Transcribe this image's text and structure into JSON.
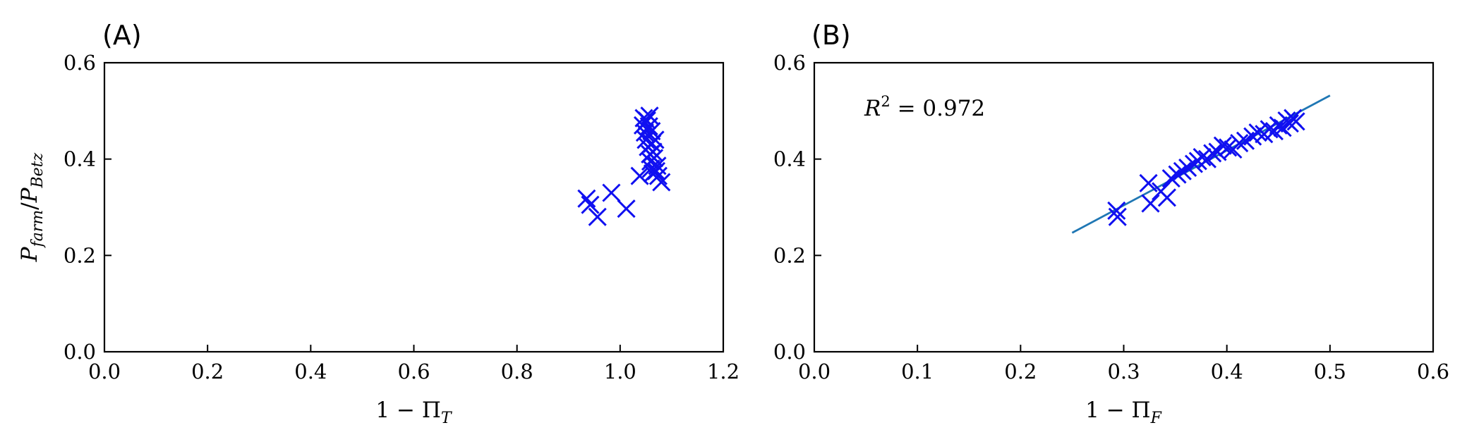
{
  "colors": {
    "marker": "#1010f0",
    "fit_line": "#1f77b4"
  },
  "chart_data": [
    {
      "type": "scatter",
      "panel_label": "(A)",
      "xlabel": "1 − Π_T",
      "ylabel": "P_farm / P_Betz",
      "xlim": [
        0,
        1.2
      ],
      "ylim": [
        0,
        0.6
      ],
      "xticks": [
        "0.0",
        "0.2",
        "0.4",
        "0.6",
        "0.8",
        "1.0",
        "1.2"
      ],
      "yticks": [
        "0.0",
        "0.2",
        "0.4",
        "0.6"
      ],
      "series": [
        {
          "marker": "x",
          "points": [
            [
              0.935,
              0.318
            ],
            [
              0.942,
              0.305
            ],
            [
              0.956,
              0.28
            ],
            [
              0.983,
              0.33
            ],
            [
              1.012,
              0.297
            ],
            [
              1.038,
              0.365
            ],
            [
              1.044,
              0.47
            ],
            [
              1.046,
              0.485
            ],
            [
              1.048,
              0.455
            ],
            [
              1.05,
              0.44
            ],
            [
              1.052,
              0.48
            ],
            [
              1.054,
              0.425
            ],
            [
              1.056,
              0.468
            ],
            [
              1.057,
              0.49
            ],
            [
              1.058,
              0.41
            ],
            [
              1.059,
              0.395
            ],
            [
              1.06,
              0.38
            ],
            [
              1.061,
              0.458
            ],
            [
              1.062,
              0.432
            ],
            [
              1.063,
              0.37
            ],
            [
              1.064,
              0.415
            ],
            [
              1.066,
              0.402
            ],
            [
              1.068,
              0.44
            ],
            [
              1.07,
              0.375
            ],
            [
              1.072,
              0.386
            ],
            [
              1.074,
              0.365
            ],
            [
              1.08,
              0.352
            ]
          ]
        }
      ]
    },
    {
      "type": "scatter",
      "panel_label": "(B)",
      "xlabel": "1 − Π_F",
      "xlim": [
        0,
        0.6
      ],
      "ylim": [
        0,
        0.6
      ],
      "xticks": [
        "0.0",
        "0.1",
        "0.2",
        "0.3",
        "0.4",
        "0.5",
        "0.6"
      ],
      "yticks": [
        "0.0",
        "0.2",
        "0.4",
        "0.6"
      ],
      "annotation": "R² = 0.972",
      "fit_line": {
        "x": [
          0.25,
          0.5
        ],
        "y": [
          0.247,
          0.532
        ]
      },
      "series": [
        {
          "marker": "x",
          "points": [
            [
              0.293,
              0.293
            ],
            [
              0.294,
              0.28
            ],
            [
              0.324,
              0.35
            ],
            [
              0.326,
              0.308
            ],
            [
              0.336,
              0.333
            ],
            [
              0.342,
              0.32
            ],
            [
              0.346,
              0.36
            ],
            [
              0.352,
              0.368
            ],
            [
              0.357,
              0.375
            ],
            [
              0.362,
              0.382
            ],
            [
              0.368,
              0.39
            ],
            [
              0.372,
              0.396
            ],
            [
              0.376,
              0.404
            ],
            [
              0.381,
              0.4
            ],
            [
              0.386,
              0.412
            ],
            [
              0.391,
              0.415
            ],
            [
              0.396,
              0.428
            ],
            [
              0.401,
              0.424
            ],
            [
              0.406,
              0.42
            ],
            [
              0.412,
              0.433
            ],
            [
              0.418,
              0.438
            ],
            [
              0.425,
              0.447
            ],
            [
              0.43,
              0.455
            ],
            [
              0.436,
              0.452
            ],
            [
              0.441,
              0.462
            ],
            [
              0.446,
              0.458
            ],
            [
              0.45,
              0.47
            ],
            [
              0.454,
              0.465
            ],
            [
              0.458,
              0.48
            ],
            [
              0.461,
              0.474
            ],
            [
              0.464,
              0.485
            ],
            [
              0.467,
              0.478
            ]
          ]
        }
      ]
    }
  ]
}
